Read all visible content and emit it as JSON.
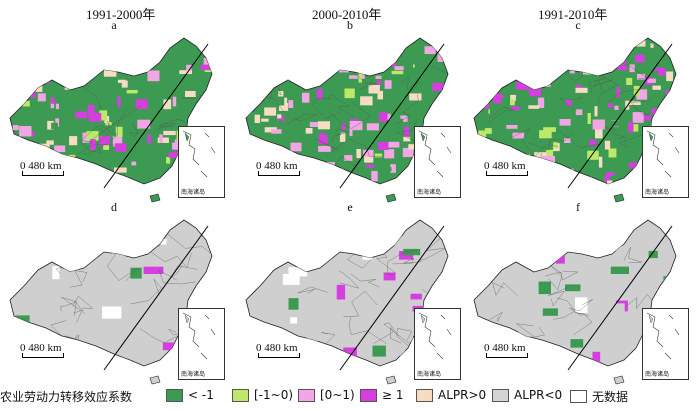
{
  "column_titles": [
    "1991-2000年",
    "2000-2010年",
    "1991-2010年"
  ],
  "panels": [
    {
      "letter": "a",
      "mode": "coef",
      "colors": {
        "green": "#3d9a52",
        "lime": "#bde86a",
        "pink": "#f2a6e6",
        "magenta": "#d63ee0",
        "peach": "#f6dcc2"
      }
    },
    {
      "letter": "b",
      "mode": "coef",
      "colors": {
        "green": "#3d9a52",
        "lime": "#bde86a",
        "pink": "#f2a6e6",
        "magenta": "#d63ee0",
        "peach": "#f6dcc2"
      }
    },
    {
      "letter": "c",
      "mode": "coef-magenta",
      "colors": {
        "green": "#3d9a52",
        "lime": "#bde86a",
        "pink": "#f2a6e6",
        "magenta": "#d63ee0",
        "peach": "#f6dcc2"
      }
    },
    {
      "letter": "d",
      "mode": "alpr",
      "colors": {
        "gray": "#cfcfcf",
        "green": "#3d9a52",
        "magenta": "#d63ee0",
        "white": "#ffffff"
      }
    },
    {
      "letter": "e",
      "mode": "alpr",
      "colors": {
        "gray": "#cfcfcf",
        "green": "#3d9a52",
        "magenta": "#d63ee0",
        "white": "#ffffff"
      }
    },
    {
      "letter": "f",
      "mode": "alpr",
      "colors": {
        "gray": "#cfcfcf",
        "green": "#3d9a52",
        "magenta": "#d63ee0",
        "white": "#ffffff"
      }
    }
  ],
  "scale_label": "0  480 km",
  "inset_label": "南海诸岛",
  "legend": {
    "title": "农业劳动力转移效应系数",
    "items": [
      {
        "label": "< -1",
        "color": "#3d9a52"
      },
      {
        "label": "[-1~0)",
        "color": "#bde86a"
      },
      {
        "label": "[0~1)",
        "color": "#f2a6e6"
      },
      {
        "label": "≥ 1",
        "color": "#d63ee0"
      },
      {
        "label": "ALPR>0",
        "color": "#f6dcc2"
      },
      {
        "label": "ALPR<0",
        "color": "#d4d4d4"
      },
      {
        "label": "无数据",
        "color": "#ffffff"
      }
    ]
  }
}
